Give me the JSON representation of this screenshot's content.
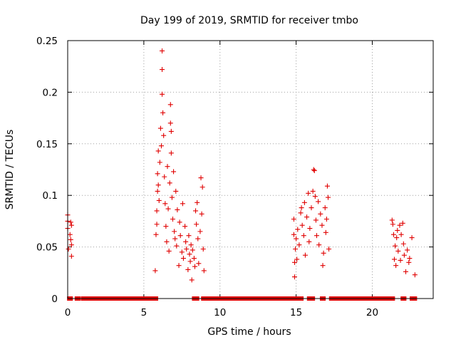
{
  "chart_data": {
    "type": "scatter",
    "title": "Day 199 of 2019, SRMTID for receiver tmbo",
    "xlabel": "GPS time / hours",
    "ylabel": "SRMTID / TECUs",
    "xlim": [
      0,
      24
    ],
    "ylim": [
      0,
      0.25
    ],
    "xticks": [
      0,
      5,
      10,
      15,
      20
    ],
    "xtick_labels": [
      "0",
      "5",
      "10",
      "15",
      "20"
    ],
    "yticks": [
      0,
      0.05,
      0.1,
      0.15,
      0.2,
      0.25
    ],
    "ytick_labels": [
      "0",
      "0.05",
      "0.1",
      "0.15",
      "0.2",
      "0.25"
    ],
    "grid": true,
    "marker": "+",
    "color": "#e00000",
    "series": [
      {
        "name": "SRMTID",
        "points": [
          [
            0.0,
            0.081
          ],
          [
            0.0,
            0.075
          ],
          [
            0.0,
            0.068
          ],
          [
            0.05,
            0.048
          ],
          [
            0.15,
            0.062
          ],
          [
            0.2,
            0.074
          ],
          [
            0.2,
            0.057
          ],
          [
            0.25,
            0.071
          ],
          [
            0.25,
            0.041
          ],
          [
            0.25,
            0.052
          ],
          [
            5.75,
            0.027
          ],
          [
            5.8,
            0.062
          ],
          [
            5.85,
            0.072
          ],
          [
            5.85,
            0.085
          ],
          [
            5.9,
            0.104
          ],
          [
            5.9,
            0.121
          ],
          [
            5.95,
            0.143
          ],
          [
            5.95,
            0.11
          ],
          [
            6.0,
            0.095
          ],
          [
            6.05,
            0.132
          ],
          [
            6.1,
            0.165
          ],
          [
            6.15,
            0.148
          ],
          [
            6.2,
            0.24
          ],
          [
            6.2,
            0.222
          ],
          [
            6.2,
            0.198
          ],
          [
            6.25,
            0.18
          ],
          [
            6.3,
            0.158
          ],
          [
            6.35,
            0.118
          ],
          [
            6.4,
            0.092
          ],
          [
            6.45,
            0.07
          ],
          [
            6.5,
            0.055
          ],
          [
            6.55,
            0.128
          ],
          [
            6.6,
            0.087
          ],
          [
            6.65,
            0.046
          ],
          [
            6.7,
            0.112
          ],
          [
            6.75,
            0.188
          ],
          [
            6.75,
            0.17
          ],
          [
            6.8,
            0.141
          ],
          [
            6.8,
            0.162
          ],
          [
            6.85,
            0.098
          ],
          [
            6.9,
            0.077
          ],
          [
            6.95,
            0.123
          ],
          [
            7.0,
            0.065
          ],
          [
            7.05,
            0.058
          ],
          [
            7.1,
            0.104
          ],
          [
            7.15,
            0.051
          ],
          [
            7.2,
            0.086
          ],
          [
            7.3,
            0.032
          ],
          [
            7.35,
            0.074
          ],
          [
            7.4,
            0.061
          ],
          [
            7.5,
            0.045
          ],
          [
            7.55,
            0.092
          ],
          [
            7.6,
            0.039
          ],
          [
            7.7,
            0.07
          ],
          [
            7.75,
            0.055
          ],
          [
            7.8,
            0.048
          ],
          [
            7.9,
            0.028
          ],
          [
            7.95,
            0.061
          ],
          [
            8.0,
            0.043
          ],
          [
            8.05,
            0.036
          ],
          [
            8.1,
            0.052
          ],
          [
            8.15,
            0.018
          ],
          [
            8.2,
            0.047
          ],
          [
            8.3,
            0.039
          ],
          [
            8.35,
            0.031
          ],
          [
            8.4,
            0.085
          ],
          [
            8.45,
            0.072
          ],
          [
            8.5,
            0.093
          ],
          [
            8.55,
            0.058
          ],
          [
            8.6,
            0.034
          ],
          [
            8.7,
            0.065
          ],
          [
            8.75,
            0.117
          ],
          [
            8.8,
            0.082
          ],
          [
            8.85,
            0.108
          ],
          [
            8.9,
            0.048
          ],
          [
            8.95,
            0.027
          ],
          [
            14.85,
            0.062
          ],
          [
            14.85,
            0.077
          ],
          [
            14.9,
            0.021
          ],
          [
            14.9,
            0.035
          ],
          [
            14.95,
            0.048
          ],
          [
            15.0,
            0.058
          ],
          [
            15.05,
            0.038
          ],
          [
            15.1,
            0.067
          ],
          [
            15.2,
            0.052
          ],
          [
            15.3,
            0.083
          ],
          [
            15.35,
            0.088
          ],
          [
            15.4,
            0.071
          ],
          [
            15.5,
            0.061
          ],
          [
            15.55,
            0.093
          ],
          [
            15.6,
            0.042
          ],
          [
            15.7,
            0.079
          ],
          [
            15.8,
            0.102
          ],
          [
            15.85,
            0.055
          ],
          [
            15.9,
            0.068
          ],
          [
            16.0,
            0.088
          ],
          [
            16.1,
            0.104
          ],
          [
            16.15,
            0.125
          ],
          [
            16.2,
            0.124
          ],
          [
            16.25,
            0.099
          ],
          [
            16.3,
            0.076
          ],
          [
            16.35,
            0.061
          ],
          [
            16.45,
            0.094
          ],
          [
            16.5,
            0.052
          ],
          [
            16.6,
            0.082
          ],
          [
            16.7,
            0.071
          ],
          [
            16.75,
            0.032
          ],
          [
            16.8,
            0.044
          ],
          [
            16.9,
            0.088
          ],
          [
            16.95,
            0.064
          ],
          [
            17.0,
            0.077
          ],
          [
            17.05,
            0.109
          ],
          [
            17.1,
            0.098
          ],
          [
            17.15,
            0.048
          ],
          [
            21.3,
            0.076
          ],
          [
            21.35,
            0.072
          ],
          [
            21.4,
            0.062
          ],
          [
            21.45,
            0.038
          ],
          [
            21.5,
            0.051
          ],
          [
            21.55,
            0.032
          ],
          [
            21.6,
            0.059
          ],
          [
            21.65,
            0.066
          ],
          [
            21.7,
            0.046
          ],
          [
            21.8,
            0.071
          ],
          [
            21.85,
            0.037
          ],
          [
            21.9,
            0.062
          ],
          [
            22.0,
            0.073
          ],
          [
            22.05,
            0.053
          ],
          [
            22.1,
            0.042
          ],
          [
            22.2,
            0.026
          ],
          [
            22.3,
            0.047
          ],
          [
            22.4,
            0.035
          ],
          [
            22.45,
            0.039
          ],
          [
            22.6,
            0.059
          ],
          [
            22.8,
            0.023
          ]
        ]
      }
    ],
    "zero_segments": [
      [
        0.1,
        0.2
      ],
      [
        0.6,
        0.7
      ],
      [
        1.0,
        5.8
      ],
      [
        8.3,
        8.5
      ],
      [
        8.9,
        11.5
      ],
      [
        11.7,
        14.7
      ],
      [
        14.9,
        15.2
      ],
      [
        15.25,
        15.35
      ],
      [
        15.85,
        16.1
      ],
      [
        16.7,
        16.8
      ],
      [
        17.3,
        21.35
      ],
      [
        22.0,
        22.1
      ],
      [
        22.6,
        22.8
      ]
    ]
  }
}
